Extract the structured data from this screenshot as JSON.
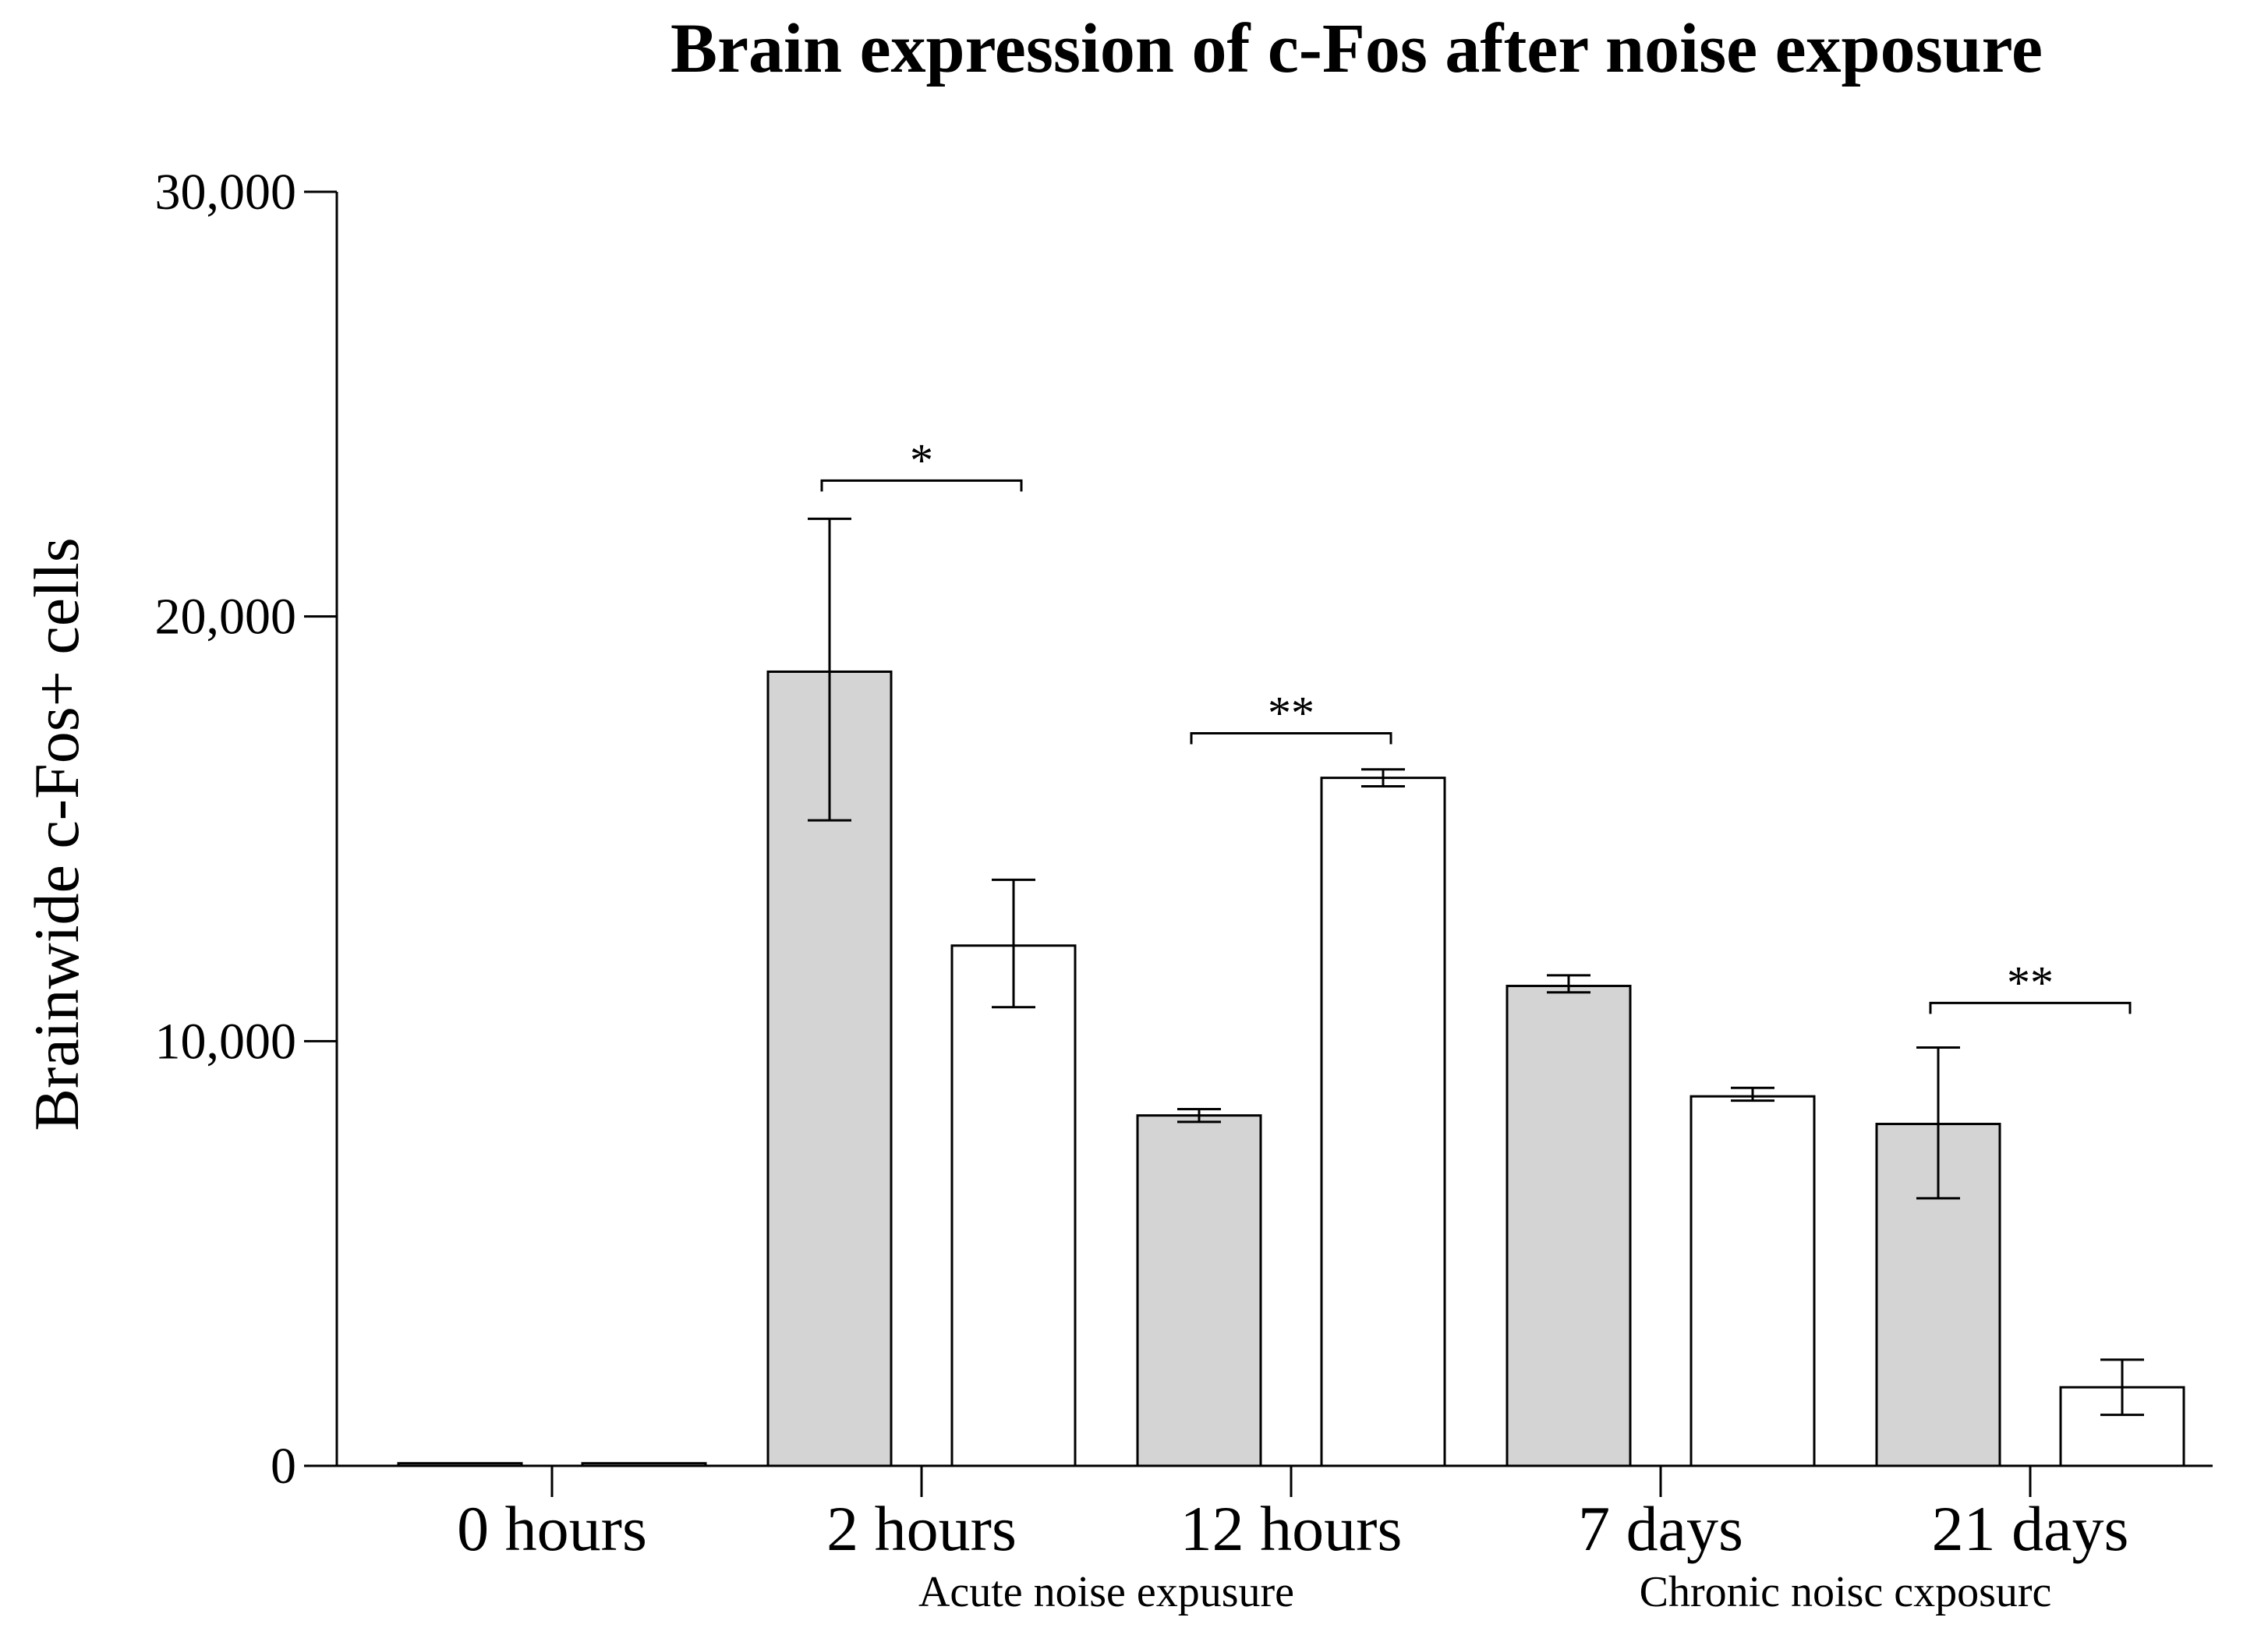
{
  "chart_data": {
    "type": "bar",
    "title": "Brain expression of c-Fos after noise exposure",
    "ylabel": "Brainwide c-Fos+ cells",
    "xlabel": "",
    "ylim": [
      0,
      30000
    ],
    "yticks": [
      0,
      10000,
      20000,
      30000
    ],
    "ytick_labels": [
      "0",
      "10,000",
      "20,000",
      "30,000"
    ],
    "categories": [
      "0 hours",
      "2 hours",
      "12 hours",
      "7 days",
      "21 days"
    ],
    "series": [
      {
        "name": "grey bars",
        "color": "#d4d4d4",
        "values": [
          60,
          18700,
          8250,
          11300,
          8050
        ],
        "error_low": [
          60,
          15200,
          8100,
          11150,
          6300
        ],
        "error_high": [
          60,
          22300,
          8400,
          11550,
          9850
        ]
      },
      {
        "name": "white bars",
        "color": "#ffffff",
        "values": [
          60,
          12250,
          0,
          8700,
          1850
        ],
        "error_low": [
          60,
          10800,
          0,
          8600,
          1200
        ],
        "error_high": [
          60,
          13800,
          0,
          8900,
          2500
        ]
      },
      {
        "name": "white bar (12 hours)",
        "color": "#ffffff",
        "values": [
          0,
          0,
          16200,
          0,
          0
        ],
        "error_low": [
          0,
          0,
          16000,
          0,
          0
        ],
        "error_high": [
          0,
          0,
          16400,
          0,
          0
        ]
      }
    ],
    "group_labels": [
      {
        "text": "Acute noise expusure",
        "span": [
          1,
          2
        ]
      },
      {
        "text": "Chronic noisc cxposurc",
        "span": [
          3,
          4
        ]
      }
    ],
    "significance": [
      {
        "category": 1,
        "label": "*",
        "y": 23200
      },
      {
        "category": 2,
        "label": "**",
        "y": 17250
      },
      {
        "category": 4,
        "label": "**",
        "y": 10900
      }
    ]
  }
}
